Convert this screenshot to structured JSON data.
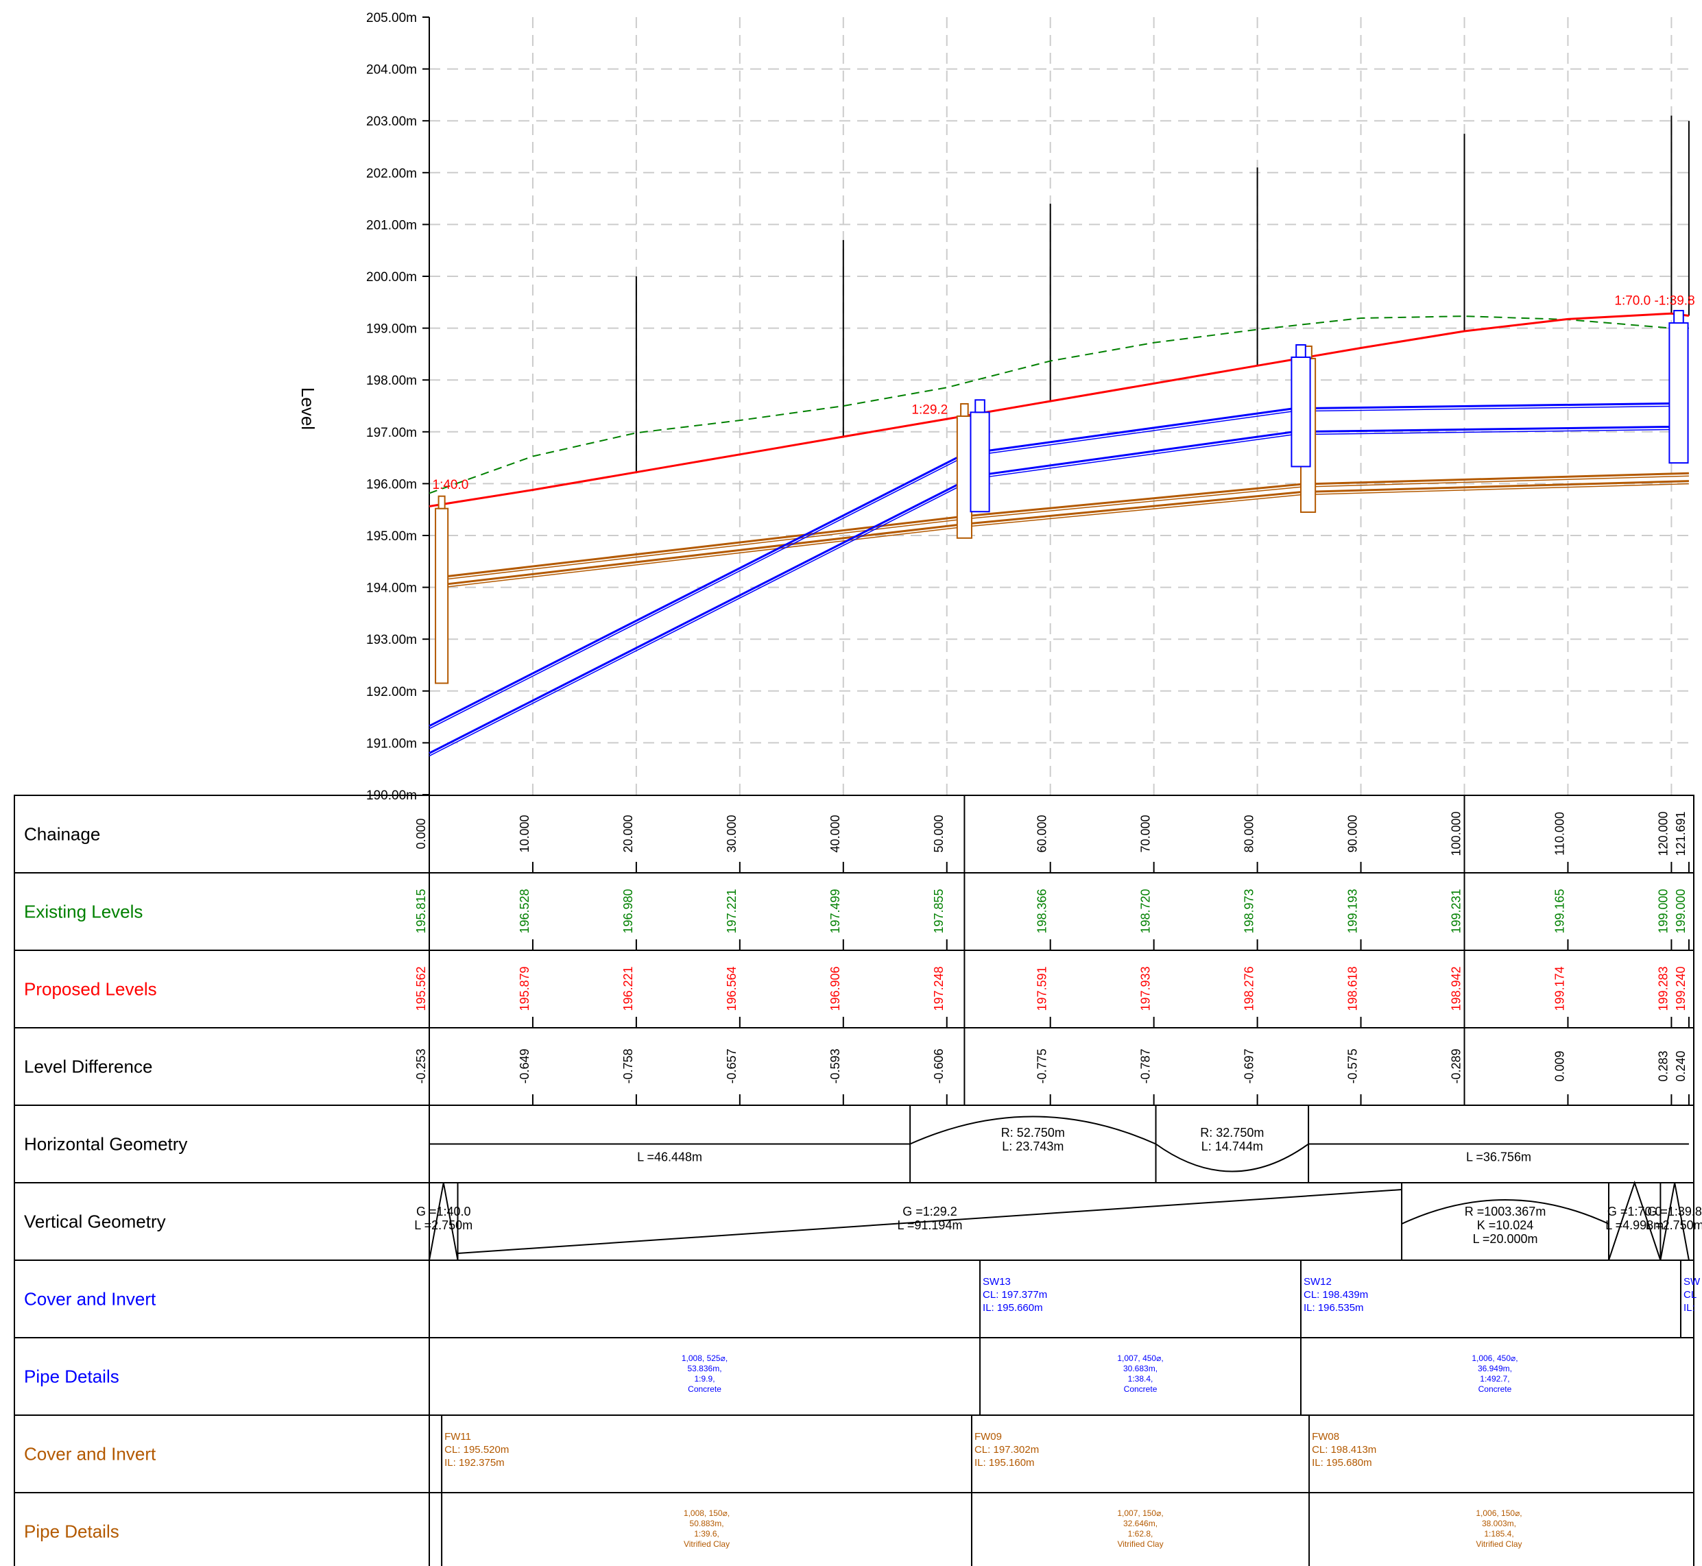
{
  "axis": {
    "title": "Level",
    "y_ticks": [
      "205.00m",
      "204.00m",
      "203.00m",
      "202.00m",
      "201.00m",
      "200.00m",
      "199.00m",
      "198.00m",
      "197.00m",
      "196.00m",
      "195.00m",
      "194.00m",
      "193.00m",
      "192.00m",
      "191.00m",
      "190.00m"
    ]
  },
  "colors": {
    "existing": "#008000",
    "proposed": "#ff0000",
    "storm": "#0000ff",
    "foul": "#b35900",
    "grid": "#cccccc",
    "ink": "#000000"
  },
  "profile": {
    "chainage_range": [
      0,
      121.691
    ],
    "level_range": [
      190,
      205
    ],
    "existing_ground": [
      [
        0,
        195.815
      ],
      [
        10,
        196.528
      ],
      [
        20,
        196.98
      ],
      [
        30,
        197.221
      ],
      [
        40,
        197.499
      ],
      [
        50,
        197.855
      ],
      [
        60,
        198.366
      ],
      [
        70,
        198.72
      ],
      [
        80,
        198.973
      ],
      [
        90,
        199.193
      ],
      [
        100,
        199.231
      ],
      [
        110,
        199.165
      ],
      [
        120,
        199
      ],
      [
        121.691,
        199
      ]
    ],
    "proposed_ground": [
      [
        0,
        195.562
      ],
      [
        10,
        195.879
      ],
      [
        20,
        196.221
      ],
      [
        30,
        196.564
      ],
      [
        40,
        196.906
      ],
      [
        50,
        197.248
      ],
      [
        60,
        197.591
      ],
      [
        70,
        197.933
      ],
      [
        80,
        198.276
      ],
      [
        90,
        198.618
      ],
      [
        100,
        198.942
      ],
      [
        110,
        199.174
      ],
      [
        120,
        199.283
      ],
      [
        121.691,
        199.24
      ]
    ],
    "ordinate_tops": [
      [
        0,
        199.1
      ],
      [
        20,
        200.0
      ],
      [
        40,
        200.7
      ],
      [
        60,
        201.4
      ],
      [
        80,
        202.1
      ],
      [
        100,
        202.75
      ],
      [
        120,
        203.1
      ],
      [
        121.691,
        203.0
      ]
    ],
    "grade_labels": [
      {
        "text": "1:40.0",
        "chainage": 0.3,
        "level": 195.9
      },
      {
        "text": "1:29.2",
        "chainage": 46.6,
        "level": 197.35
      },
      {
        "text": "1:70.0 -1:39.8",
        "chainage": 114.5,
        "level": 199.45
      }
    ],
    "storm_pipes": [
      {
        "from": [
          0,
          190.8
        ],
        "to": [
          52.7,
          196.15
        ],
        "dia": 0.525
      },
      {
        "from": [
          52.7,
          196.15
        ],
        "to": [
          83.5,
          197.0
        ],
        "dia": 0.45
      },
      {
        "from": [
          83.5,
          197.0
        ],
        "to": [
          121,
          197.1
        ],
        "dia": 0.45
      }
    ],
    "storm_chambers": [
      {
        "chainage": 53.2,
        "top": 197.377,
        "bottom": 195.46,
        "width": 1.8
      },
      {
        "chainage": 84.2,
        "top": 198.439,
        "bottom": 196.33,
        "width": 1.8
      },
      {
        "chainage": 120.7,
        "top": 199.1,
        "bottom": 196.4,
        "width": 1.8
      }
    ],
    "foul_pipes": [
      {
        "from": [
          1.2,
          194.05
        ],
        "to": [
          51.7,
          195.22
        ],
        "dia": 0.15
      },
      {
        "from": [
          51.7,
          195.22
        ],
        "to": [
          84.3,
          195.84
        ],
        "dia": 0.15
      },
      {
        "from": [
          84.3,
          195.84
        ],
        "to": [
          121.691,
          196.05
        ],
        "dia": 0.15
      }
    ],
    "foul_chambers": [
      {
        "chainage": 1.2,
        "top": 195.52,
        "bottom": 192.15,
        "width": 1.2
      },
      {
        "chainage": 51.7,
        "top": 197.302,
        "bottom": 194.95,
        "width": 1.4
      },
      {
        "chainage": 84.9,
        "top": 198.413,
        "bottom": 195.45,
        "width": 1.4
      }
    ]
  },
  "bands": [
    {
      "label": "Chainage",
      "color": "#000000",
      "values": [
        "0.000",
        "10.000",
        "20.000",
        "30.000",
        "40.000",
        "50.000",
        "60.000",
        "70.000",
        "80.000",
        "90.000",
        "100.000",
        "110.000",
        "120.000",
        "121.691"
      ],
      "ch": [
        0,
        10,
        20,
        30,
        40,
        50,
        60,
        70,
        80,
        90,
        100,
        110,
        120,
        121.691
      ]
    },
    {
      "label": "Existing Levels",
      "color": "#008000",
      "values": [
        "195.815",
        "196.528",
        "196.980",
        "197.221",
        "197.499",
        "197.855",
        "198.366",
        "198.720",
        "198.973",
        "199.193",
        "199.231",
        "199.165",
        "199.000",
        "199.000"
      ],
      "ch": [
        0,
        10,
        20,
        30,
        40,
        50,
        60,
        70,
        80,
        90,
        100,
        110,
        120,
        121.691
      ]
    },
    {
      "label": "Proposed Levels",
      "color": "#ff0000",
      "values": [
        "195.562",
        "195.879",
        "196.221",
        "196.564",
        "196.906",
        "197.248",
        "197.591",
        "197.933",
        "198.276",
        "198.618",
        "198.942",
        "199.174",
        "199.283",
        "199.240"
      ],
      "ch": [
        0,
        10,
        20,
        30,
        40,
        50,
        60,
        70,
        80,
        90,
        100,
        110,
        120,
        121.691
      ]
    },
    {
      "label": "Level Difference",
      "color": "#000000",
      "values": [
        "-0.253",
        "-0.649",
        "-0.758",
        "-0.657",
        "-0.593",
        "-0.606",
        "-0.775",
        "-0.787",
        "-0.697",
        "-0.575",
        "-0.289",
        "0.009",
        "0.283",
        "0.240"
      ],
      "ch": [
        0,
        10,
        20,
        30,
        40,
        50,
        60,
        70,
        80,
        90,
        100,
        110,
        120,
        121.691
      ]
    },
    {
      "label": "Horizontal Geometry",
      "color": "#000000"
    },
    {
      "label": "Vertical Geometry",
      "color": "#000000"
    },
    {
      "label": "Cover and Invert",
      "color": "#0000ff"
    },
    {
      "label": "Pipe Details",
      "color": "#0000ff"
    },
    {
      "label": "Cover and Invert",
      "color": "#b35900"
    },
    {
      "label": "Pipe Details",
      "color": "#b35900"
    }
  ],
  "horizontal_geometry": [
    {
      "kind": "straight",
      "from": 0,
      "to": 46.448,
      "lines": [
        "L =46.448m"
      ]
    },
    {
      "kind": "arc-up",
      "from": 46.448,
      "to": 70.191,
      "lines": [
        "R: 52.750m",
        "L: 23.743m"
      ]
    },
    {
      "kind": "arc-down",
      "from": 70.191,
      "to": 84.935,
      "lines": [
        "R: 32.750m",
        "L: 14.744m"
      ]
    },
    {
      "kind": "straight",
      "from": 84.935,
      "to": 121.691,
      "lines": [
        "L =36.756m"
      ]
    }
  ],
  "vertical_geometry": [
    {
      "kind": "grade",
      "from": 0,
      "to": 2.75,
      "lines": [
        "G =1:40.0",
        "L =2.750m"
      ]
    },
    {
      "kind": "grade",
      "from": 2.75,
      "to": 93.944,
      "lines": [
        "G =1:29.2",
        "L =91.194m"
      ]
    },
    {
      "kind": "curve",
      "from": 93.944,
      "to": 113.944,
      "lines": [
        "R =1003.367m",
        "K =10.024",
        "L =20.000m"
      ]
    },
    {
      "kind": "grade",
      "from": 113.944,
      "to": 118.94,
      "lines": [
        "G =1:70.0",
        "L =4.998m"
      ]
    },
    {
      "kind": "grade",
      "from": 118.94,
      "to": 121.691,
      "lines": [
        "G =1:39.8",
        "L =2.750m"
      ]
    }
  ],
  "storm_nodes": [
    {
      "chainage": 53.2,
      "lines": [
        "SW13",
        "CL: 197.377m",
        "IL: 195.660m"
      ]
    },
    {
      "chainage": 84.2,
      "lines": [
        "SW12",
        "CL: 198.439m",
        "IL: 196.535m"
      ]
    },
    {
      "chainage": 120.9,
      "lines": [
        "SW",
        "CL",
        "IL:"
      ]
    }
  ],
  "storm_pipes_text": [
    {
      "from": 0,
      "to": 53.2,
      "lines": [
        "1,008, 525⌀,",
        "53.836m,",
        "1:9.9,",
        "Concrete"
      ]
    },
    {
      "from": 53.2,
      "to": 84.2,
      "lines": [
        "1,007, 450⌀,",
        "30.683m,",
        "1:38.4,",
        "Concrete"
      ]
    },
    {
      "from": 84.2,
      "to": 121.691,
      "lines": [
        "1,006, 450⌀,",
        "36.949m,",
        "1:492.7,",
        "Concrete"
      ]
    }
  ],
  "foul_nodes": [
    {
      "chainage": 1.2,
      "lines": [
        "FW11",
        "CL: 195.520m",
        "IL: 192.375m"
      ]
    },
    {
      "chainage": 52.4,
      "lines": [
        "FW09",
        "CL: 197.302m",
        "IL: 195.160m"
      ]
    },
    {
      "chainage": 85.0,
      "lines": [
        "FW08",
        "CL: 198.413m",
        "IL: 195.680m"
      ]
    }
  ],
  "foul_pipes_text": [
    {
      "from": 1.2,
      "to": 52.4,
      "lines": [
        "1,008, 150⌀,",
        "50.883m,",
        "1:39.6,",
        "Vitrified Clay"
      ]
    },
    {
      "from": 52.4,
      "to": 85.0,
      "lines": [
        "1,007, 150⌀,",
        "32.646m,",
        "1:62.8,",
        "Vitrified Clay"
      ]
    },
    {
      "from": 85.0,
      "to": 121.691,
      "lines": [
        "1,006, 150⌀,",
        "38.003m,",
        "1:185.4,",
        "Vitrified Clay"
      ]
    }
  ]
}
